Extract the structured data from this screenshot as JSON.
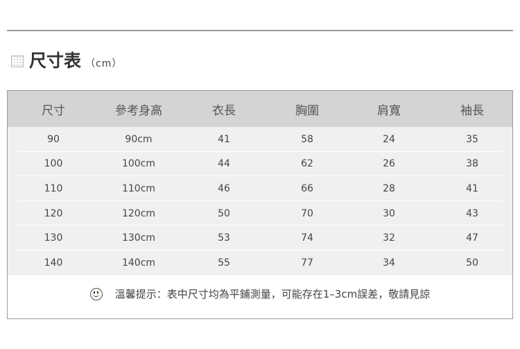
{
  "title": {
    "main": "尺寸表",
    "unit": "（cm）",
    "icon": "calendar-grid-icon"
  },
  "table": {
    "headers": [
      "尺寸",
      "參考身高",
      "衣長",
      "胸圍",
      "肩寬",
      "袖長"
    ],
    "rows": [
      [
        "90",
        "90cm",
        "41",
        "58",
        "24",
        "35"
      ],
      [
        "100",
        "100cm",
        "44",
        "62",
        "26",
        "38"
      ],
      [
        "110",
        "110cm",
        "46",
        "66",
        "28",
        "41"
      ],
      [
        "120",
        "120cm",
        "50",
        "70",
        "30",
        "43"
      ],
      [
        "130",
        "130cm",
        "53",
        "74",
        "32",
        "47"
      ],
      [
        "140",
        "140cm",
        "55",
        "77",
        "34",
        "50"
      ]
    ]
  },
  "note": {
    "icon": "smiley-icon",
    "text": "溫馨提示：表中尺寸均為平鋪測量，可能存在1–3cm誤差，敬請見諒"
  }
}
